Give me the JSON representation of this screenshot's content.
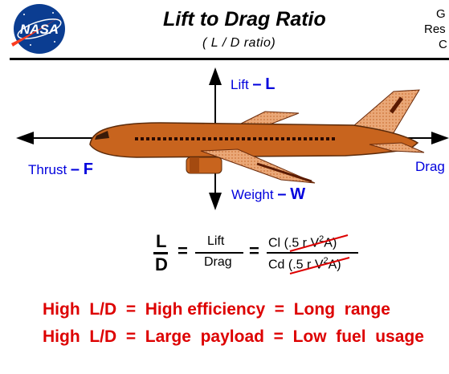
{
  "header": {
    "logo_text": "NASA",
    "title": "Lift to Drag Ratio",
    "subtitle": "( L / D ratio)",
    "center_name": [
      "G",
      "Res",
      "C"
    ]
  },
  "forces": {
    "lift_word": "Lift",
    "lift_dash": "–",
    "lift_symbol": "L",
    "thrust_word": "Thrust",
    "thrust_dash": "–",
    "thrust_symbol": "F",
    "weight_word": "Weight",
    "weight_dash": "–",
    "weight_symbol": "W",
    "drag_word": "Drag"
  },
  "equation": {
    "ratio_top": "L",
    "ratio_bottom": "D",
    "equals": "=",
    "lift": "Lift",
    "drag": "Drag",
    "cl_coef": "Cl",
    "cd_coef": "Cd",
    "paren_open": "(",
    "half": ".5 r",
    "velocity": "V",
    "squared": "2",
    "area": "A)"
  },
  "conclusions": [
    "High  L/D  =  High efficiency  =  Long  range",
    "High  L/D  =  Large  payload  =  Low  fuel  usage"
  ],
  "colors": {
    "fuselage": "#c8641e",
    "wing": "#e8a878",
    "force_text": "#0000dd",
    "conclusion_text": "#dd0000",
    "strike": "#dd0000",
    "nasa_blue": "#0b3d91",
    "nasa_red": "#fc3d21"
  }
}
